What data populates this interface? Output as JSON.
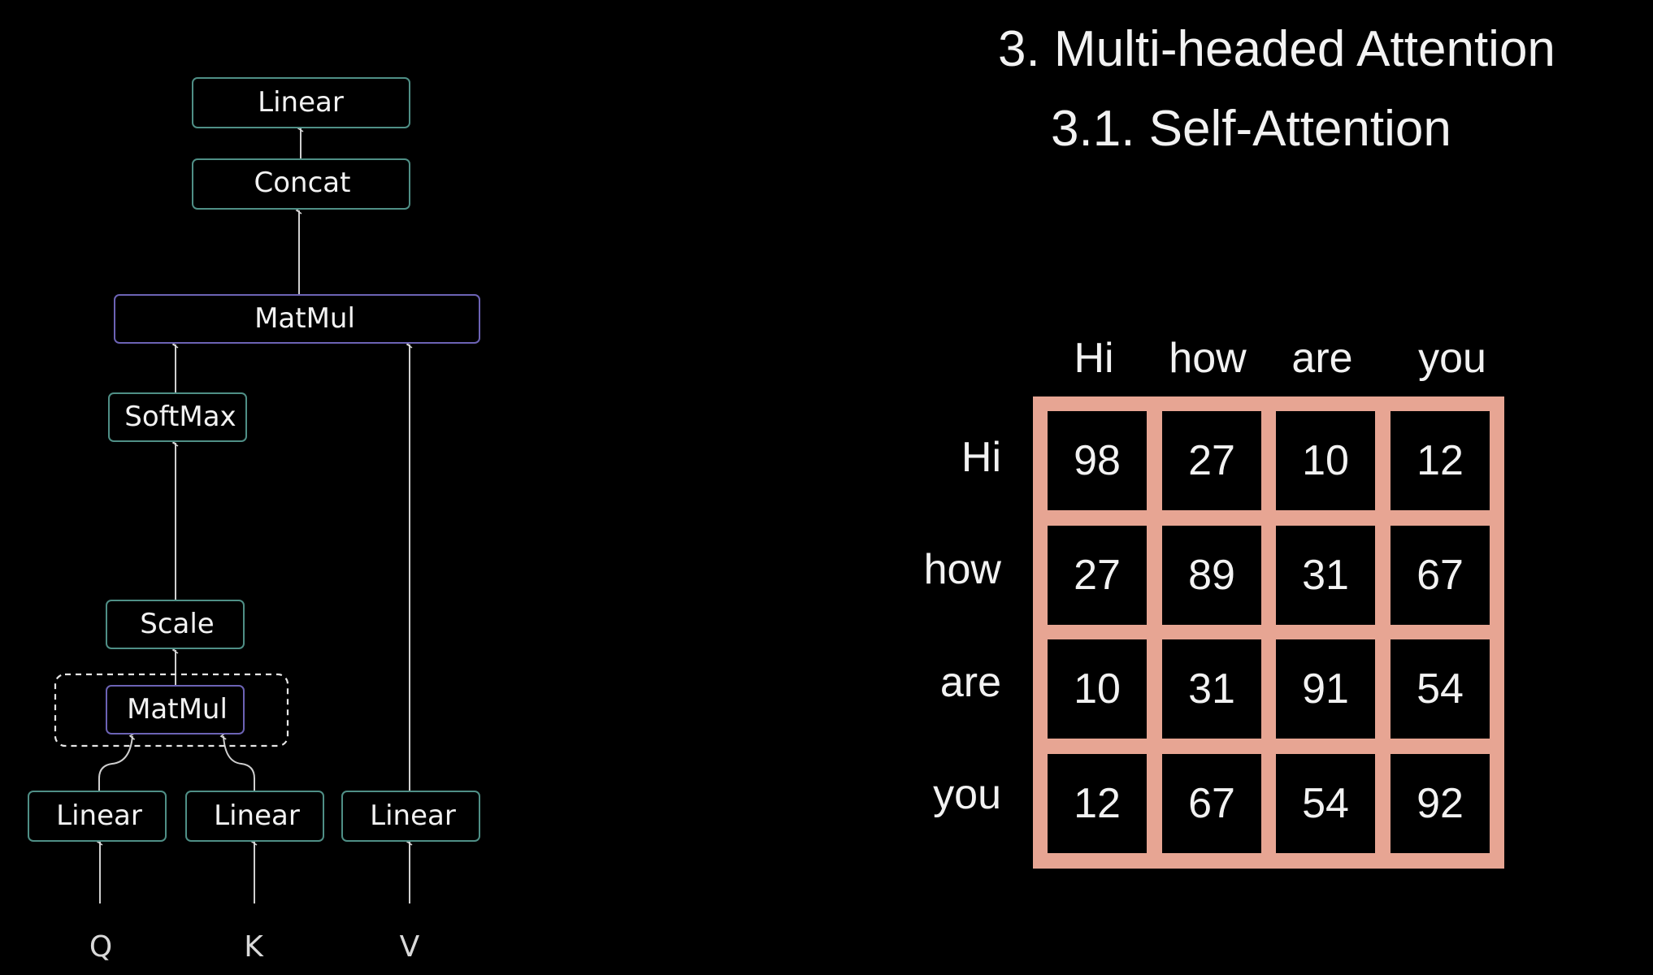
{
  "diagram": {
    "boxes": [
      {
        "id": "linear_top",
        "label": "Linear"
      },
      {
        "id": "concat",
        "label": "Concat"
      },
      {
        "id": "matmul_top",
        "label": "MatMul"
      },
      {
        "id": "softmax",
        "label": "SoftMax"
      },
      {
        "id": "scale",
        "label": "Scale"
      },
      {
        "id": "matmul_inner",
        "label": "MatMul"
      },
      {
        "id": "linear_q",
        "label": "Linear"
      },
      {
        "id": "linear_k",
        "label": "Linear"
      },
      {
        "id": "linear_v",
        "label": "Linear"
      }
    ],
    "inputs": [
      "Q",
      "K",
      "V"
    ]
  },
  "heading": {
    "title": "3. Multi-headed Attention",
    "subtitle": "3.1. Self-Attention"
  },
  "matrix": {
    "columns": [
      "Hi",
      "how",
      "are",
      "you"
    ],
    "rows": [
      {
        "label": "Hi",
        "values": [
          "98",
          "27",
          "10",
          "12"
        ]
      },
      {
        "label": "how",
        "values": [
          "27",
          "89",
          "31",
          "67"
        ]
      },
      {
        "label": "are",
        "values": [
          "10",
          "31",
          "91",
          "54"
        ]
      },
      {
        "label": "you",
        "values": [
          "12",
          "67",
          "54",
          "92"
        ]
      }
    ],
    "grid_color": "#e7a593"
  },
  "colors": {
    "background": "#000000",
    "box_border_green": "#4f8f86",
    "box_border_purple": "#6c63b5",
    "text": "#f2f2f2"
  }
}
